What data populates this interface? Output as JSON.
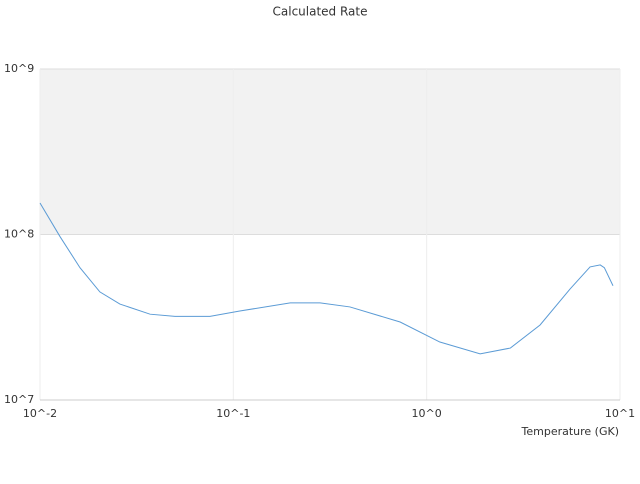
{
  "chart_data": {
    "type": "line",
    "title": "Calculated Rate",
    "x_label": "Temperature (GK)",
    "x_log": true,
    "y_log": true,
    "xlim": [
      0.01,
      10
    ],
    "ylim": [
      10000000,
      1000000000
    ],
    "xticks": [
      {
        "value": 0.01,
        "label": "10^-2"
      },
      {
        "value": 0.1,
        "label": "10^-1"
      },
      {
        "value": 1,
        "label": "10^0"
      },
      {
        "value": 10,
        "label": "10^1"
      }
    ],
    "yticks": [
      {
        "value": 10000000,
        "label": "10^7"
      },
      {
        "value": 100000000,
        "label": "10^8"
      },
      {
        "value": 1000000000,
        "label": "10^9"
      }
    ],
    "band": {
      "from": 100000000,
      "to": 1000000000,
      "color": "#f2f2f2"
    },
    "series": [
      {
        "color": "#5b9bd5",
        "x": [
          0.01,
          0.0127,
          0.0161,
          0.0204,
          0.0259,
          0.0371,
          0.0499,
          0.0757,
          0.108,
          0.197,
          0.281,
          0.401,
          0.729,
          1.17,
          1.89,
          2.71,
          3.86,
          5.52,
          7.0,
          7.9,
          8.3,
          9.2
        ],
        "values": [
          155000000,
          97000000,
          63000000,
          45000000,
          38000000,
          33000000,
          32000000,
          32000000,
          34500000,
          38600000,
          38600000,
          36500000,
          29600000,
          22400000,
          19000000,
          20600000,
          28400000,
          46900000,
          63700000,
          65500000,
          63000000,
          49000000
        ]
      }
    ]
  }
}
